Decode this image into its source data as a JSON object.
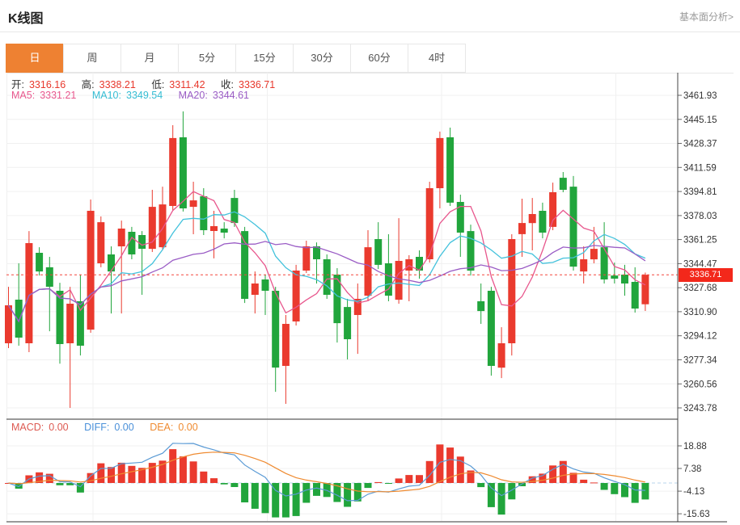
{
  "header": {
    "title": "K线图",
    "link": "基本面分析>"
  },
  "tabs": {
    "items": [
      "日",
      "周",
      "月",
      "5分",
      "15分",
      "30分",
      "60分",
      "4时"
    ],
    "active": 0
  },
  "ohlc": {
    "open_label": "开:",
    "open": "3316.16",
    "high_label": "高:",
    "high": "3338.21",
    "low_label": "低:",
    "low": "3311.42",
    "close_label": "收:",
    "close": "3336.71"
  },
  "ma": {
    "ma5_label": "MA5:",
    "ma5": "3331.21",
    "ma10_label": "MA10:",
    "ma10": "3349.54",
    "ma20_label": "MA20:",
    "ma20": "3344.61"
  },
  "macd_legend": {
    "macd_label": "MACD:",
    "macd": "0.00",
    "diff_label": "DIFF:",
    "diff": "0.00",
    "dea_label": "DEA:",
    "dea": "0.00"
  },
  "price_marker": "3336.71",
  "colors": {
    "up": "#ea3a2e",
    "down": "#21a53c",
    "ma5": "#e8578d",
    "ma10": "#43c2dc",
    "ma20": "#9a5cc5",
    "diff": "#5b9bd5",
    "dea": "#ef8b31",
    "accent": "#ee8132",
    "badge": "#f3281b",
    "price_line": "#f4453b",
    "grid": "#f0f0f0",
    "axis": "#444444",
    "panel_border": "#333333",
    "tick_text": "#333333"
  },
  "chart_data": {
    "type": "candlestick",
    "panels": [
      "price-with-ma",
      "macd"
    ],
    "timeframe": "日",
    "y_axis": {
      "ticks": [
        3461.93,
        3445.15,
        3428.37,
        3411.59,
        3394.81,
        3378.03,
        3361.25,
        3344.47,
        3327.68,
        3310.9,
        3294.12,
        3277.34,
        3260.56,
        3243.78
      ],
      "last_price": 3336.71
    },
    "ma_periods": [
      5,
      10,
      20
    ],
    "macd_axis": {
      "ticks": [
        18.88,
        7.38,
        -4.13,
        -15.63
      ],
      "values_shown": {
        "MACD": 0.0,
        "DIFF": 0.0,
        "DEA": 0.0
      }
    },
    "candles_format": [
      "open",
      "high",
      "low",
      "close"
    ],
    "candles": [
      [
        3288.9,
        3328.3,
        3285.5,
        3315.4
      ],
      [
        3319.3,
        3344.7,
        3287.2,
        3292.8
      ],
      [
        3288.9,
        3367.2,
        3282.7,
        3358.8
      ],
      [
        3352.0,
        3355.9,
        3336.2,
        3339.0
      ],
      [
        3341.9,
        3349.2,
        3297.3,
        3328.3
      ],
      [
        3325.5,
        3331.1,
        3274.7,
        3288.3
      ],
      [
        3288.9,
        3328.3,
        3243.8,
        3316.5
      ],
      [
        3318.2,
        3336.8,
        3280.4,
        3287.2
      ],
      [
        3298.4,
        3389.2,
        3296.2,
        3381.3
      ],
      [
        3344.7,
        3377.4,
        3341.9,
        3373.4
      ],
      [
        3350.9,
        3356.5,
        3309.7,
        3339.0
      ],
      [
        3356.5,
        3374.5,
        3309.7,
        3368.9
      ],
      [
        3366.7,
        3370.1,
        3347.5,
        3350.9
      ],
      [
        3364.4,
        3367.2,
        3322.7,
        3354.8
      ],
      [
        3354.8,
        3396.0,
        3352.6,
        3384.1
      ],
      [
        3355.9,
        3398.2,
        3353.7,
        3385.8
      ],
      [
        3384.7,
        3441.1,
        3381.9,
        3432.1
      ],
      [
        3432.6,
        3450.7,
        3380.8,
        3383.0
      ],
      [
        3384.1,
        3401.6,
        3365.0,
        3388.6
      ],
      [
        3391.5,
        3397.1,
        3364.4,
        3367.8
      ],
      [
        3367.2,
        3381.3,
        3348.1,
        3370.6
      ],
      [
        3368.9,
        3373.4,
        3362.1,
        3366.1
      ],
      [
        3390.3,
        3396.0,
        3370.1,
        3372.8
      ],
      [
        3367.2,
        3370.1,
        3317.0,
        3319.9
      ],
      [
        3322.7,
        3339.0,
        3309.7,
        3330.6
      ],
      [
        3333.4,
        3336.8,
        3308.6,
        3325.5
      ],
      [
        3325.5,
        3328.3,
        3255.0,
        3271.9
      ],
      [
        3273.1,
        3308.6,
        3246.6,
        3302.4
      ],
      [
        3304.1,
        3343.6,
        3301.3,
        3339.6
      ],
      [
        3339.6,
        3360.5,
        3337.9,
        3356.5
      ],
      [
        3356.5,
        3359.3,
        3330.6,
        3347.5
      ],
      [
        3347.5,
        3350.9,
        3319.9,
        3322.7
      ],
      [
        3336.8,
        3341.3,
        3289.4,
        3302.9
      ],
      [
        3314.2,
        3319.9,
        3277.6,
        3291.7
      ],
      [
        3308.6,
        3330.6,
        3281.5,
        3319.9
      ],
      [
        3322.1,
        3367.8,
        3318.2,
        3355.9
      ],
      [
        3361.6,
        3373.4,
        3340.7,
        3343.6
      ],
      [
        3344.7,
        3365.0,
        3318.2,
        3322.1
      ],
      [
        3319.3,
        3376.2,
        3316.5,
        3346.4
      ],
      [
        3339.6,
        3350.3,
        3318.2,
        3347.5
      ],
      [
        3349.2,
        3353.7,
        3334.0,
        3339.6
      ],
      [
        3347.5,
        3401.6,
        3345.2,
        3397.1
      ],
      [
        3397.1,
        3436.6,
        3383.0,
        3432.1
      ],
      [
        3432.6,
        3439.4,
        3384.7,
        3387.0
      ],
      [
        3387.5,
        3392.6,
        3349.2,
        3366.1
      ],
      [
        3367.2,
        3371.7,
        3336.2,
        3339.6
      ],
      [
        3318.2,
        3330.6,
        3302.4,
        3311.4
      ],
      [
        3325.5,
        3328.3,
        3266.3,
        3273.1
      ],
      [
        3271.9,
        3300.1,
        3264.6,
        3288.9
      ],
      [
        3288.9,
        3365.0,
        3280.4,
        3361.6
      ],
      [
        3365.0,
        3389.8,
        3349.2,
        3372.8
      ],
      [
        3372.8,
        3390.3,
        3353.7,
        3379.1
      ],
      [
        3381.3,
        3387.0,
        3362.1,
        3366.1
      ],
      [
        3370.1,
        3401.0,
        3367.8,
        3394.3
      ],
      [
        3404.4,
        3408.4,
        3394.3,
        3396.0
      ],
      [
        3398.2,
        3405.6,
        3339.6,
        3342.4
      ],
      [
        3339.0,
        3356.5,
        3330.6,
        3347.5
      ],
      [
        3347.5,
        3370.1,
        3344.7,
        3354.8
      ],
      [
        3355.9,
        3373.4,
        3330.6,
        3333.4
      ],
      [
        3336.2,
        3345.2,
        3330.6,
        3334.0
      ],
      [
        3336.8,
        3343.6,
        3322.1,
        3330.6
      ],
      [
        3331.7,
        3341.9,
        3310.3,
        3313.1
      ],
      [
        3316.16,
        3338.21,
        3311.42,
        3336.71
      ]
    ]
  }
}
